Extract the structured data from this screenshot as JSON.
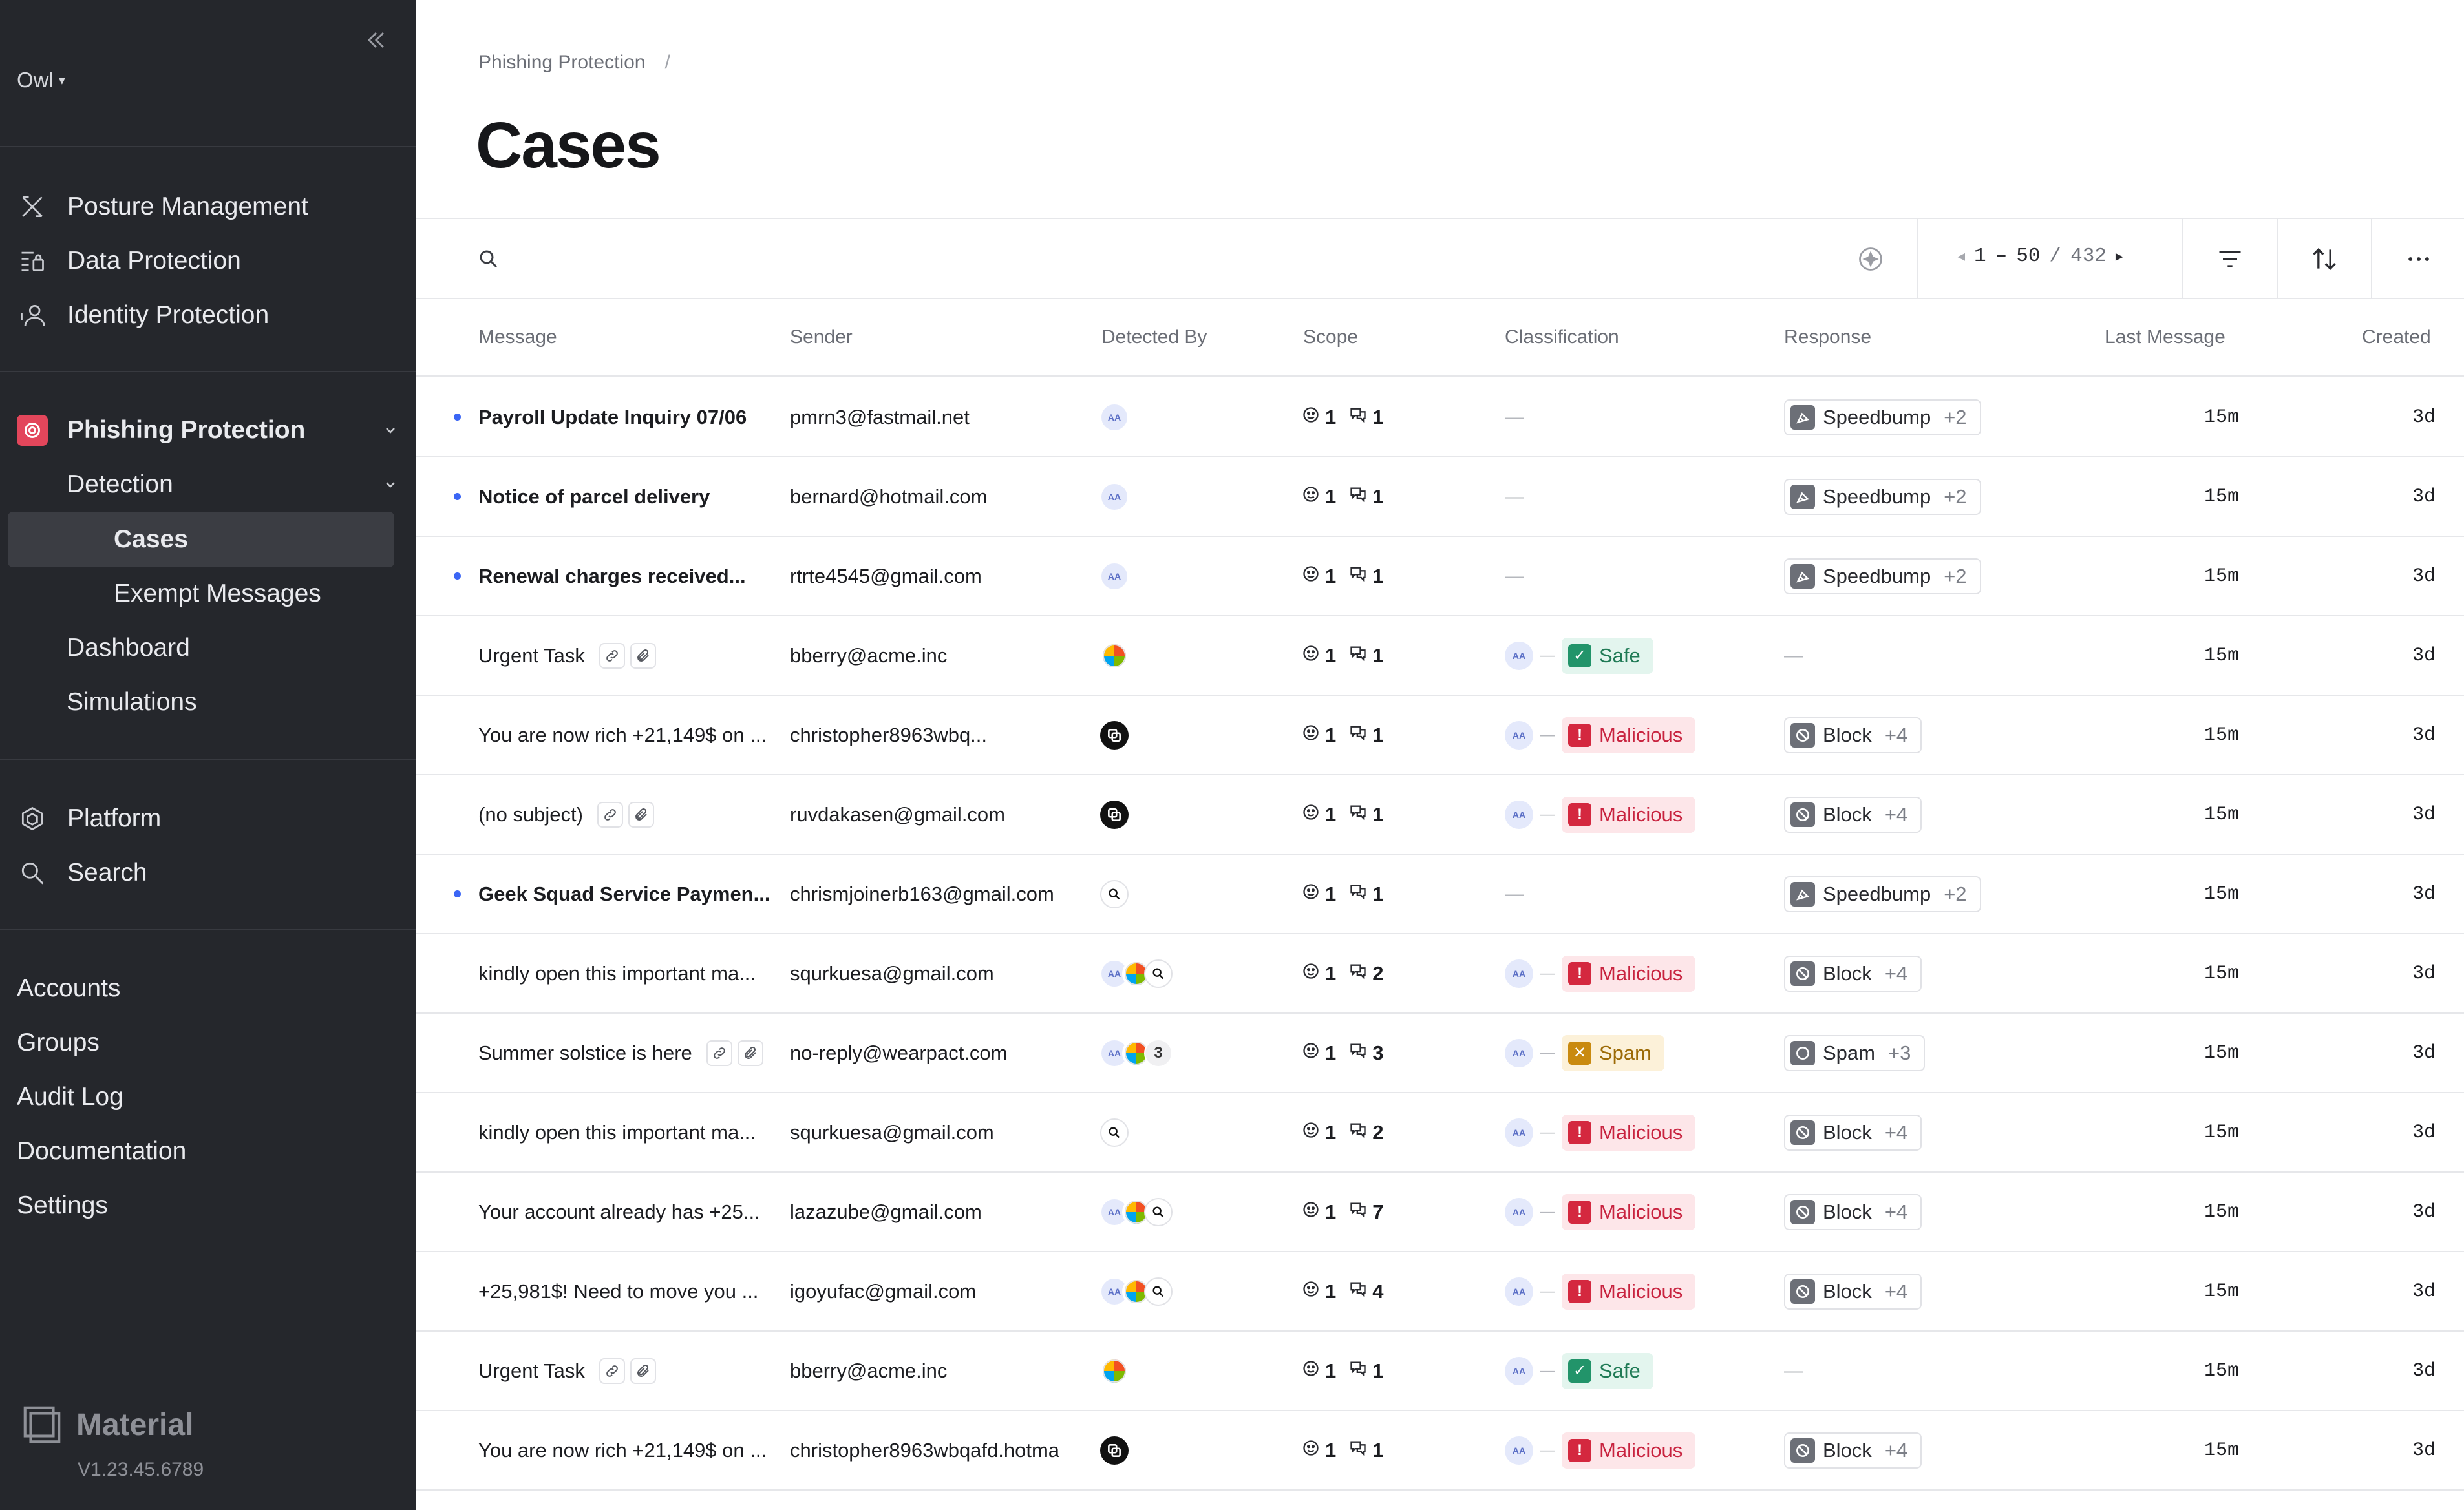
{
  "sidebar": {
    "org": "Owl",
    "nav": {
      "posture": "Posture Management",
      "data_protection": "Data Protection",
      "identity": "Identity Protection",
      "phishing": "Phishing Protection",
      "detection": "Detection",
      "cases": "Cases",
      "exempt": "Exempt Messages",
      "dashboard": "Dashboard",
      "simulations": "Simulations",
      "platform": "Platform",
      "search": "Search"
    },
    "bottom": [
      "Accounts",
      "Groups",
      "Audit Log",
      "Documentation",
      "Settings"
    ],
    "brand": "Material",
    "version": "V1.23.45.6789"
  },
  "breadcrumb": {
    "parent": "Phishing Protection",
    "sep": "/"
  },
  "page_title": "Cases",
  "toolbar": {
    "search_placeholder": "",
    "pager": {
      "start": "1",
      "dash": "–",
      "end": "50",
      "slash": "/",
      "total": "432"
    }
  },
  "columns": {
    "message": "Message",
    "sender": "Sender",
    "detected_by": "Detected By",
    "scope": "Scope",
    "classification": "Classification",
    "response": "Response",
    "last_message": "Last Message",
    "created": "Created"
  },
  "rows": [
    {
      "message": "Payroll Update Inquiry 07/06",
      "unread": true,
      "icons": [],
      "sender": "pmrn3@fastmail.net",
      "detected": [
        "aa"
      ],
      "users": "1",
      "messages": "1",
      "classification": null,
      "response": {
        "label": "Speedbump",
        "extra": "+2"
      },
      "last": "15m",
      "created": "3d"
    },
    {
      "message": "Notice of parcel delivery",
      "unread": true,
      "icons": [],
      "sender": "bernard@hotmail.com",
      "detected": [
        "aa"
      ],
      "users": "1",
      "messages": "1",
      "classification": null,
      "response": {
        "label": "Speedbump",
        "extra": "+2"
      },
      "last": "15m",
      "created": "3d"
    },
    {
      "message": "Renewal charges received...",
      "unread": true,
      "icons": [],
      "sender": "rtrte4545@gmail.com",
      "detected": [
        "aa"
      ],
      "users": "1",
      "messages": "1",
      "classification": null,
      "response": {
        "label": "Speedbump",
        "extra": "+2"
      },
      "last": "15m",
      "created": "3d"
    },
    {
      "message": "Urgent Task",
      "unread": false,
      "icons": [
        "link",
        "clip"
      ],
      "sender": "bberry@acme.inc",
      "detected": [
        "multi"
      ],
      "users": "1",
      "messages": "1",
      "classification": {
        "label": "Safe",
        "type": "safe"
      },
      "response": null,
      "last": "15m",
      "created": "3d"
    },
    {
      "message": "You are now rich +21,149$ on ...",
      "unread": false,
      "icons": [],
      "sender": "christopher8963wbq...",
      "detected": [
        "black"
      ],
      "users": "1",
      "messages": "1",
      "classification": {
        "label": "Malicious",
        "type": "mal"
      },
      "response": {
        "label": "Block",
        "extra": "+4"
      },
      "last": "15m",
      "created": "3d"
    },
    {
      "message": "(no subject)",
      "unread": false,
      "icons": [
        "link",
        "clip"
      ],
      "sender": "ruvdakasen@gmail.com",
      "detected": [
        "black"
      ],
      "users": "1",
      "messages": "1",
      "classification": {
        "label": "Malicious",
        "type": "mal"
      },
      "response": {
        "label": "Block",
        "extra": "+4"
      },
      "last": "15m",
      "created": "3d"
    },
    {
      "message": "Geek Squad Service Paymen...",
      "unread": true,
      "icons": [],
      "sender": "chrismjoinerb163@gmail.com",
      "detected": [
        "search"
      ],
      "users": "1",
      "messages": "1",
      "classification": null,
      "response": {
        "label": "Speedbump",
        "extra": "+2"
      },
      "last": "15m",
      "created": "3d"
    },
    {
      "message": "kindly open this important ma...",
      "unread": false,
      "icons": [],
      "sender": "squrkuesa@gmail.com",
      "detected": [
        "aa",
        "multi",
        "search"
      ],
      "users": "1",
      "messages": "2",
      "classification": {
        "label": "Malicious",
        "type": "mal"
      },
      "response": {
        "label": "Block",
        "extra": "+4"
      },
      "last": "15m",
      "created": "3d"
    },
    {
      "message": "Summer solstice is here",
      "unread": false,
      "icons": [
        "link",
        "clip"
      ],
      "sender": "no-reply@wearpact.com",
      "detected": [
        "aa",
        "multi",
        "n3"
      ],
      "users": "1",
      "messages": "3",
      "classification": {
        "label": "Spam",
        "type": "spam"
      },
      "response": {
        "label": "Spam",
        "extra": "+3"
      },
      "last": "15m",
      "created": "3d"
    },
    {
      "message": "kindly open this important ma...",
      "unread": false,
      "icons": [],
      "sender": "squrkuesa@gmail.com",
      "detected": [
        "search"
      ],
      "users": "1",
      "messages": "2",
      "classification": {
        "label": "Malicious",
        "type": "mal"
      },
      "response": {
        "label": "Block",
        "extra": "+4"
      },
      "last": "15m",
      "created": "3d"
    },
    {
      "message": "Your account already has +25...",
      "unread": false,
      "icons": [],
      "sender": "lazazube@gmail.com",
      "detected": [
        "aa",
        "multi",
        "search"
      ],
      "users": "1",
      "messages": "7",
      "classification": {
        "label": "Malicious",
        "type": "mal"
      },
      "response": {
        "label": "Block",
        "extra": "+4"
      },
      "last": "15m",
      "created": "3d"
    },
    {
      "message": "+25,981$! Need to move you ...",
      "unread": false,
      "icons": [],
      "sender": "igoyufac@gmail.com",
      "detected": [
        "aa",
        "multi",
        "search"
      ],
      "users": "1",
      "messages": "4",
      "classification": {
        "label": "Malicious",
        "type": "mal"
      },
      "response": {
        "label": "Block",
        "extra": "+4"
      },
      "last": "15m",
      "created": "3d"
    },
    {
      "message": "Urgent Task",
      "unread": false,
      "icons": [
        "link",
        "clip"
      ],
      "sender": "bberry@acme.inc",
      "detected": [
        "multi"
      ],
      "users": "1",
      "messages": "1",
      "classification": {
        "label": "Safe",
        "type": "safe"
      },
      "response": null,
      "last": "15m",
      "created": "3d"
    },
    {
      "message": "You are now rich +21,149$ on ...",
      "unread": false,
      "icons": [],
      "sender": "christopher8963wbqafd.hotma",
      "detected": [
        "black"
      ],
      "users": "1",
      "messages": "1",
      "classification": {
        "label": "Malicious",
        "type": "mal"
      },
      "response": {
        "label": "Block",
        "extra": "+4"
      },
      "last": "15m",
      "created": "3d"
    }
  ],
  "colors": {
    "sidebar_bg": "#25272c",
    "accent_phishing": "#e3465b",
    "unread_dot": "#3b66f5",
    "malicious": "#d4283f",
    "safe": "#22946a",
    "spam": "#c98a10"
  }
}
